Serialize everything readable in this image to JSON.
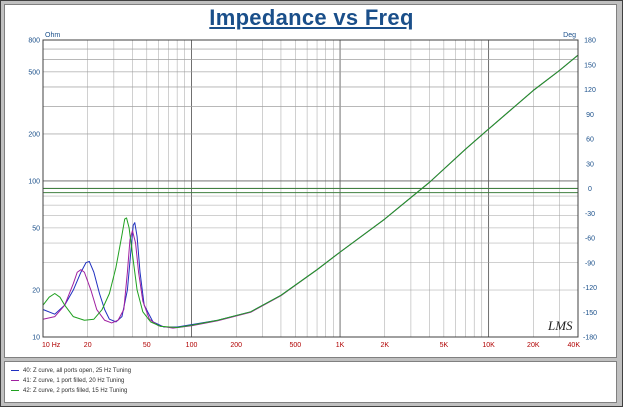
{
  "colors": {
    "frame": "#c0c0c0",
    "plot_bg": "#ffffff",
    "grid": "#a0a0a0",
    "axis_label": "#1a4f8a",
    "x_tick_label": "#b00000",
    "title": "#1a4f8a",
    "hline": "#408040"
  },
  "chart_data": {
    "type": "line",
    "title": "Impedance vs Freq",
    "ylabel": "Ohm",
    "y2label": "Deg",
    "xscale": "log",
    "yscale": "log",
    "xlim": [
      10,
      40000
    ],
    "ylim": [
      10,
      800
    ],
    "y2lim": [
      -180,
      180
    ],
    "grid": true,
    "x_ticks": [
      {
        "value": 10,
        "label": "10 Hz"
      },
      {
        "value": 20,
        "label": "20"
      },
      {
        "value": 50,
        "label": "50"
      },
      {
        "value": 100,
        "label": "100"
      },
      {
        "value": 200,
        "label": "200"
      },
      {
        "value": 500,
        "label": "500"
      },
      {
        "value": 1000,
        "label": "1K"
      },
      {
        "value": 2000,
        "label": "2K"
      },
      {
        "value": 5000,
        "label": "5K"
      },
      {
        "value": 10000,
        "label": "10K"
      },
      {
        "value": 20000,
        "label": "20K"
      },
      {
        "value": 40000,
        "label": "40K"
      }
    ],
    "y_ticks": [
      {
        "value": 10,
        "label": "10"
      },
      {
        "value": 20,
        "label": "20"
      },
      {
        "value": 50,
        "label": "50"
      },
      {
        "value": 100,
        "label": "100"
      },
      {
        "value": 200,
        "label": "200"
      },
      {
        "value": 500,
        "label": "500"
      },
      {
        "value": 800,
        "label": "800"
      }
    ],
    "y2_ticks": [
      {
        "value": 180,
        "label": "180"
      },
      {
        "value": 150,
        "label": "150"
      },
      {
        "value": 120,
        "label": "120"
      },
      {
        "value": 90,
        "label": "90"
      },
      {
        "value": 60,
        "label": "60"
      },
      {
        "value": 30,
        "label": "30"
      },
      {
        "value": 0,
        "label": "0"
      },
      {
        "value": -30,
        "label": "-30"
      },
      {
        "value": -60,
        "label": "-60"
      },
      {
        "value": -90,
        "label": "-90"
      },
      {
        "value": -120,
        "label": "-120"
      },
      {
        "value": -150,
        "label": "-150"
      },
      {
        "value": -180,
        "label": "-180"
      }
    ],
    "reference_lines": [
      {
        "axis": "y2",
        "value": 0,
        "color": "#408040"
      },
      {
        "axis": "y2",
        "value": -5,
        "color": "#408040"
      }
    ],
    "series": [
      {
        "name": "40: Z curve, all ports open, 25 Hz Tuning",
        "color": "#2030c0",
        "points": [
          [
            10,
            15
          ],
          [
            12,
            14
          ],
          [
            14,
            16
          ],
          [
            16,
            20
          ],
          [
            18,
            26
          ],
          [
            19.5,
            30
          ],
          [
            20.5,
            30.5
          ],
          [
            22,
            26
          ],
          [
            24,
            19
          ],
          [
            26,
            15
          ],
          [
            28,
            13
          ],
          [
            31,
            12.5
          ],
          [
            34,
            13.5
          ],
          [
            37,
            20
          ],
          [
            39,
            35
          ],
          [
            40.5,
            52
          ],
          [
            41.5,
            54
          ],
          [
            43,
            44
          ],
          [
            45,
            26
          ],
          [
            48,
            16
          ],
          [
            55,
            12.5
          ],
          [
            65,
            11.6
          ],
          [
            80,
            11.6
          ],
          [
            100,
            12
          ],
          [
            150,
            12.8
          ],
          [
            250,
            14.5
          ],
          [
            400,
            18.5
          ],
          [
            700,
            27
          ],
          [
            1000,
            35
          ],
          [
            2000,
            57
          ],
          [
            4000,
            98
          ],
          [
            7000,
            160
          ],
          [
            10000,
            215
          ],
          [
            15000,
            300
          ],
          [
            20000,
            380
          ],
          [
            30000,
            510
          ],
          [
            40000,
            640
          ]
        ]
      },
      {
        "name": "41: Z curve, 1 port filled, 20 Hz Tuning",
        "color": "#a020a0",
        "points": [
          [
            10,
            13
          ],
          [
            12,
            13.5
          ],
          [
            14,
            16
          ],
          [
            16,
            22
          ],
          [
            17,
            26
          ],
          [
            18,
            27
          ],
          [
            19,
            26
          ],
          [
            21,
            20
          ],
          [
            23,
            15
          ],
          [
            26,
            12.8
          ],
          [
            29,
            12.3
          ],
          [
            32,
            12.8
          ],
          [
            35,
            15
          ],
          [
            37,
            26
          ],
          [
            38.5,
            42
          ],
          [
            40,
            48
          ],
          [
            42,
            40
          ],
          [
            44,
            26
          ],
          [
            47,
            17
          ],
          [
            52,
            13
          ],
          [
            60,
            11.8
          ],
          [
            75,
            11.4
          ],
          [
            100,
            11.8
          ],
          [
            150,
            12.7
          ],
          [
            250,
            14.4
          ],
          [
            400,
            18.4
          ],
          [
            700,
            27
          ],
          [
            1000,
            35
          ],
          [
            2000,
            57
          ],
          [
            4000,
            98
          ],
          [
            7000,
            160
          ],
          [
            10000,
            215
          ],
          [
            15000,
            300
          ],
          [
            20000,
            380
          ],
          [
            30000,
            510
          ],
          [
            40000,
            640
          ]
        ]
      },
      {
        "name": "42: Z curve, 2 ports filled, 15 Hz Tuning",
        "color": "#20a020",
        "points": [
          [
            10,
            16
          ],
          [
            11,
            18
          ],
          [
            12,
            19
          ],
          [
            13,
            18
          ],
          [
            14,
            16
          ],
          [
            16,
            13.5
          ],
          [
            19,
            12.8
          ],
          [
            22,
            13
          ],
          [
            25,
            15
          ],
          [
            28,
            19
          ],
          [
            31,
            28
          ],
          [
            34,
            45
          ],
          [
            35.5,
            57
          ],
          [
            36.5,
            58
          ],
          [
            38,
            50
          ],
          [
            40,
            34
          ],
          [
            43,
            20
          ],
          [
            47,
            14.5
          ],
          [
            53,
            12.5
          ],
          [
            62,
            11.7
          ],
          [
            80,
            11.5
          ],
          [
            100,
            11.9
          ],
          [
            150,
            12.8
          ],
          [
            250,
            14.5
          ],
          [
            400,
            18.5
          ],
          [
            700,
            27
          ],
          [
            1000,
            35
          ],
          [
            2000,
            57
          ],
          [
            4000,
            98
          ],
          [
            7000,
            160
          ],
          [
            10000,
            215
          ],
          [
            15000,
            300
          ],
          [
            20000,
            380
          ],
          [
            30000,
            510
          ],
          [
            40000,
            640
          ]
        ]
      }
    ]
  },
  "watermark": "LMS",
  "legend": [
    {
      "label": "40: Z curve, all ports open, 25 Hz Tuning",
      "color": "#2030c0"
    },
    {
      "label": "41: Z curve, 1 port filled, 20 Hz Tuning",
      "color": "#a020a0"
    },
    {
      "label": "42: Z curve, 2 ports filled, 15 Hz Tuning",
      "color": "#20a020"
    }
  ]
}
